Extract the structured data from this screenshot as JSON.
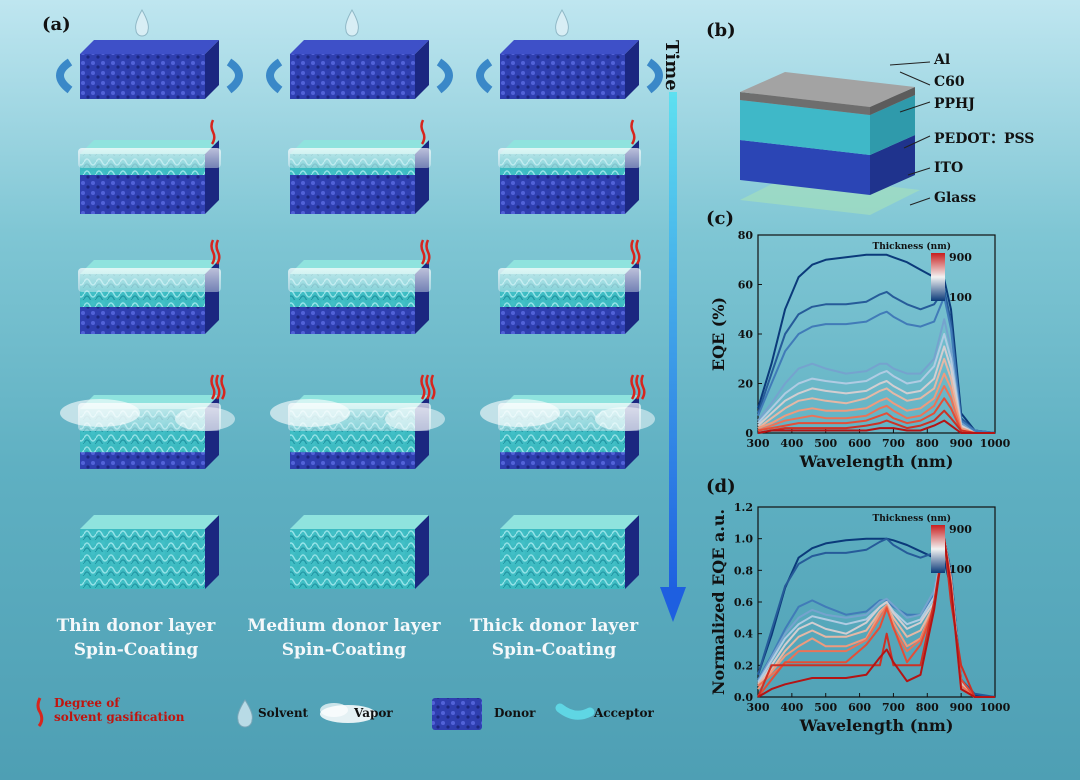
{
  "panel_labels": {
    "a": "(a)",
    "b": "(b)",
    "c": "(c)",
    "d": "(d)"
  },
  "time_label": "Time",
  "columns": [
    {
      "caption_line1": "Thin donor layer",
      "caption_line2": "Spin-Coating"
    },
    {
      "caption_line1": "Medium donor layer",
      "caption_line2": "Spin-Coating"
    },
    {
      "caption_line1": "Thick donor layer",
      "caption_line2": "Spin-Coating"
    }
  ],
  "device_layers": [
    "Al",
    "C60",
    "PPHJ",
    "PEDOT：PSS",
    "ITO",
    "Glass"
  ],
  "legend": {
    "gasification_line1": "Degree of",
    "gasification_line2": "solvent gasification",
    "solvent": "Solvent",
    "vapor": "Vapor",
    "donor": "Donor",
    "acceptor": "Acceptor"
  },
  "colors": {
    "donor": "#2f3fb0",
    "acceptor": "#3fd0c8",
    "arrow": "#1e6fe0",
    "thin_curve": "#0b3a7a",
    "thick_curve": "#e8543a"
  },
  "chart_data": [
    {
      "type": "line",
      "panel": "(c)",
      "xlabel": "Wavelength (nm)",
      "ylabel": "EQE (%)",
      "xlim": [
        300,
        1000
      ],
      "ylim": [
        0,
        80
      ],
      "xticks": [
        300,
        400,
        500,
        600,
        700,
        800,
        900,
        1000
      ],
      "yticks": [
        0,
        20,
        40,
        60,
        80
      ],
      "colorbar": {
        "title": "Thickness (nm)",
        "max_label": "900",
        "min_label": "100"
      },
      "x": [
        300,
        340,
        380,
        420,
        460,
        500,
        560,
        620,
        660,
        680,
        700,
        740,
        780,
        820,
        850,
        870,
        900,
        940,
        1000
      ],
      "series": [
        {
          "values": [
            10,
            28,
            50,
            63,
            68,
            70,
            71,
            72,
            72,
            72,
            71,
            69,
            66,
            63,
            62,
            50,
            8,
            1,
            0
          ]
        },
        {
          "values": [
            8,
            24,
            40,
            48,
            51,
            52,
            52,
            53,
            56,
            57,
            55,
            52,
            50,
            52,
            58,
            45,
            6,
            1,
            0
          ]
        },
        {
          "values": [
            7,
            20,
            33,
            40,
            43,
            44,
            44,
            45,
            48,
            49,
            47,
            44,
            43,
            45,
            55,
            42,
            5,
            1,
            0
          ]
        },
        {
          "values": [
            5,
            12,
            20,
            26,
            28,
            26,
            24,
            25,
            28,
            28,
            26,
            24,
            24,
            30,
            46,
            34,
            4,
            0,
            0
          ]
        },
        {
          "values": [
            4,
            10,
            16,
            20,
            22,
            21,
            20,
            21,
            24,
            25,
            23,
            20,
            21,
            27,
            40,
            30,
            3,
            0,
            0
          ]
        },
        {
          "values": [
            3,
            8,
            13,
            16,
            18,
            17,
            16,
            17,
            20,
            21,
            19,
            16,
            17,
            22,
            35,
            26,
            3,
            0,
            0
          ]
        },
        {
          "values": [
            2,
            6,
            10,
            13,
            14,
            13,
            12,
            14,
            17,
            18,
            16,
            13,
            14,
            18,
            30,
            22,
            2,
            0,
            0
          ]
        },
        {
          "values": [
            2,
            4,
            7,
            9,
            10,
            9,
            9,
            10,
            13,
            14,
            12,
            9,
            10,
            14,
            24,
            18,
            2,
            0,
            0
          ]
        },
        {
          "values": [
            1,
            3,
            5,
            6,
            7,
            6,
            6,
            7,
            10,
            11,
            9,
            6,
            7,
            11,
            19,
            14,
            1,
            0,
            0
          ]
        },
        {
          "values": [
            1,
            2,
            3,
            4,
            4,
            4,
            4,
            5,
            7,
            8,
            6,
            4,
            5,
            8,
            14,
            10,
            1,
            0,
            0
          ]
        },
        {
          "values": [
            0,
            1,
            2,
            2,
            2,
            2,
            2,
            3,
            4,
            5,
            4,
            2,
            3,
            5,
            9,
            6,
            1,
            0,
            0
          ]
        },
        {
          "values": [
            0,
            1,
            1,
            1,
            1,
            1,
            1,
            1,
            2,
            2,
            2,
            1,
            1,
            3,
            5,
            3,
            0,
            0,
            0
          ]
        }
      ]
    },
    {
      "type": "line",
      "panel": "(d)",
      "xlabel": "Wavelength (nm)",
      "ylabel": "Normalized EQE a.u.",
      "xlim": [
        300,
        1000
      ],
      "ylim": [
        0,
        1.2
      ],
      "xticks": [
        300,
        400,
        500,
        600,
        700,
        800,
        900,
        1000
      ],
      "yticks": [
        0.0,
        0.2,
        0.4,
        0.6,
        0.8,
        1.0,
        1.2
      ],
      "colorbar": {
        "title": "Thickness (nm)",
        "max_label": "900",
        "min_label": "100"
      },
      "x": [
        300,
        340,
        380,
        420,
        460,
        500,
        560,
        620,
        660,
        680,
        700,
        740,
        780,
        820,
        850,
        870,
        900,
        940,
        1000
      ],
      "series": [
        {
          "values": [
            0.14,
            0.39,
            0.69,
            0.88,
            0.94,
            0.97,
            0.99,
            1.0,
            1.0,
            1.0,
            0.99,
            0.96,
            0.92,
            0.88,
            0.86,
            0.69,
            0.11,
            0.01,
            0.0
          ]
        },
        {
          "values": [
            0.14,
            0.42,
            0.7,
            0.84,
            0.89,
            0.91,
            0.91,
            0.93,
            0.98,
            1.0,
            0.96,
            0.91,
            0.88,
            0.91,
            1.0,
            0.79,
            0.11,
            0.02,
            0.0
          ]
        },
        {
          "values": [
            0.11,
            0.26,
            0.43,
            0.57,
            0.61,
            0.57,
            0.52,
            0.54,
            0.61,
            0.61,
            0.57,
            0.52,
            0.52,
            0.65,
            1.0,
            0.74,
            0.09,
            0.0,
            0.0
          ]
        },
        {
          "values": [
            0.1,
            0.25,
            0.4,
            0.5,
            0.55,
            0.52,
            0.5,
            0.52,
            0.6,
            0.62,
            0.58,
            0.5,
            0.52,
            0.67,
            1.0,
            0.75,
            0.08,
            0.0,
            0.0
          ]
        },
        {
          "values": [
            0.09,
            0.23,
            0.37,
            0.46,
            0.51,
            0.49,
            0.46,
            0.49,
            0.57,
            0.6,
            0.54,
            0.46,
            0.49,
            0.63,
            1.0,
            0.74,
            0.09,
            0.0,
            0.0
          ]
        },
        {
          "values": [
            0.07,
            0.2,
            0.33,
            0.43,
            0.47,
            0.43,
            0.4,
            0.47,
            0.57,
            0.6,
            0.53,
            0.43,
            0.47,
            0.6,
            1.0,
            0.73,
            0.07,
            0.0,
            0.0
          ]
        },
        {
          "values": [
            0.08,
            0.17,
            0.29,
            0.38,
            0.42,
            0.38,
            0.38,
            0.42,
            0.54,
            0.58,
            0.5,
            0.38,
            0.42,
            0.58,
            1.0,
            0.75,
            0.08,
            0.0,
            0.0
          ]
        },
        {
          "values": [
            0.05,
            0.16,
            0.26,
            0.32,
            0.37,
            0.32,
            0.32,
            0.37,
            0.53,
            0.58,
            0.47,
            0.32,
            0.37,
            0.58,
            1.0,
            0.74,
            0.05,
            0.0,
            0.0
          ]
        },
        {
          "values": [
            0.07,
            0.14,
            0.21,
            0.29,
            0.29,
            0.29,
            0.29,
            0.36,
            0.5,
            0.57,
            0.43,
            0.29,
            0.36,
            0.57,
            1.0,
            0.71,
            0.07,
            0.0,
            0.0
          ]
        },
        {
          "values": [
            0.0,
            0.11,
            0.22,
            0.22,
            0.22,
            0.22,
            0.22,
            0.33,
            0.44,
            0.56,
            0.44,
            0.22,
            0.33,
            0.56,
            1.0,
            0.67,
            0.11,
            0.0,
            0.0
          ]
        },
        {
          "values": [
            0.0,
            0.2,
            0.2,
            0.2,
            0.2,
            0.2,
            0.2,
            0.2,
            0.2,
            0.4,
            0.2,
            0.2,
            0.2,
            0.6,
            1.0,
            0.6,
            0.2,
            0.0,
            0.0
          ]
        },
        {
          "values": [
            0.0,
            0.05,
            0.08,
            0.1,
            0.12,
            0.12,
            0.12,
            0.14,
            0.25,
            0.3,
            0.22,
            0.1,
            0.14,
            0.55,
            1.0,
            0.7,
            0.05,
            0.0,
            0.0
          ]
        }
      ]
    }
  ]
}
